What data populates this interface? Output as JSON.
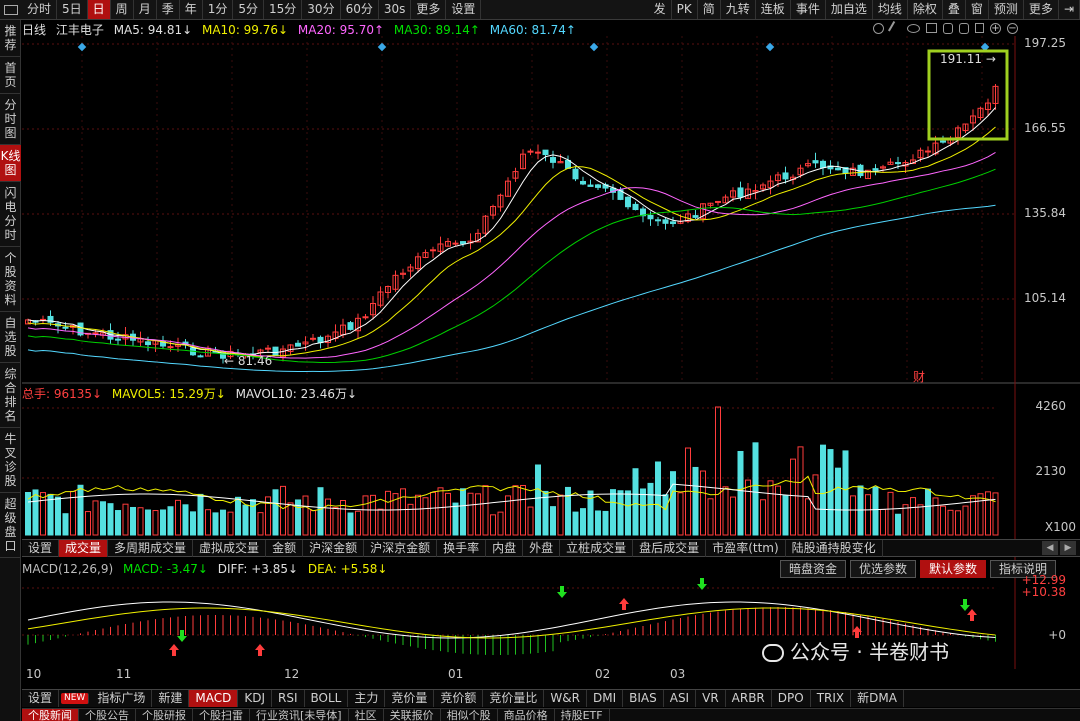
{
  "toolbar": {
    "items": [
      "分时",
      "5日",
      "日",
      "周",
      "月",
      "季",
      "年",
      "1分",
      "5分",
      "15分",
      "30分",
      "60分",
      "30s",
      "更多",
      "设置"
    ],
    "active_index": 2,
    "right_items": [
      "发",
      "PK",
      "简",
      "九转",
      "连板",
      "事件",
      "加自选",
      "均线",
      "除权",
      "叠",
      "窗",
      "预测",
      "更多"
    ]
  },
  "sidebar": {
    "items": [
      "推荐",
      "首页",
      "分时图",
      "K线图",
      "闪电分时",
      "个股资料",
      "自选股",
      "综合排名",
      "牛叉诊股",
      "超级盘口"
    ],
    "active_index": 3
  },
  "kline_legend": {
    "period": "日线",
    "stock_name": "江丰电子",
    "ma5": "MA5: 94.81↓",
    "ma10": "MA10: 99.76↓",
    "ma20": "MA20: 95.70↑",
    "ma30": "MA30: 89.14↑",
    "ma60": "MA60: 81.74↑"
  },
  "price_axis": [
    "197.25",
    "166.55",
    "135.84",
    "105.14"
  ],
  "price_annotations": {
    "high": "191.11",
    "low": "81.46",
    "fin_marker": "财"
  },
  "volume_legend": {
    "total": "总手: 96135↓",
    "mavol5": "MAVOL5: 15.29万↓",
    "mavol10": "MAVOL10: 23.46万↓"
  },
  "volume_axis": [
    "4260",
    "2130",
    "X100"
  ],
  "indicator_tabs": {
    "items": [
      "设置",
      "成交量",
      "多周期成交量",
      "虚拟成交量",
      "金额",
      "沪深金额",
      "沪深京金额",
      "换手率",
      "内盘",
      "外盘",
      "立桩成交量",
      "盘后成交量",
      "市盈率(ttm)",
      "陆股通持股变化"
    ],
    "active_index": 1
  },
  "macd_legend": {
    "name": "MACD(12,26,9)",
    "macd": "MACD: -3.47↓",
    "diff": "DIFF: +3.85↓",
    "dea": "DEA: +5.58↓"
  },
  "macd_buttons": {
    "items": [
      "暗盘资金",
      "优选参数",
      "默认参数",
      "指标说明"
    ],
    "active_index": 2
  },
  "macd_axis": [
    "+12.99",
    "+10.38",
    "+0"
  ],
  "months": [
    "10",
    "11",
    "12",
    "01",
    "02",
    "03"
  ],
  "bottom_tabs": {
    "items": [
      "设置",
      "NEW",
      "指标广场",
      "新建",
      "MACD",
      "KDJ",
      "RSI",
      "BOLL",
      "主力",
      "竞价量",
      "竞价额",
      "竞价量比",
      "W&R",
      "DMI",
      "BIAS",
      "ASI",
      "VR",
      "ARBR",
      "DPO",
      "TRIX",
      "新DMA"
    ],
    "active_index": 4
  },
  "bottom_tabs2": {
    "items": [
      "个股新闻",
      "个股公告",
      "个股研报",
      "个股扫雷",
      "行业资讯[未导体]",
      "社区",
      "关联报价",
      "相似个股",
      "商品价格",
      "持股ETF"
    ],
    "active_index": 0
  },
  "watermark": "公众号 · 半卷财书",
  "colors": {
    "up": "#ff3c3c",
    "down": "#54e0e0",
    "ma5": "#ffffff",
    "ma10": "#f0f000",
    "ma20": "#ff66ff",
    "ma30": "#00d000",
    "ma60": "#54d8ff",
    "highlight_box": "#a0d020",
    "active_tab": "#b01010"
  }
}
